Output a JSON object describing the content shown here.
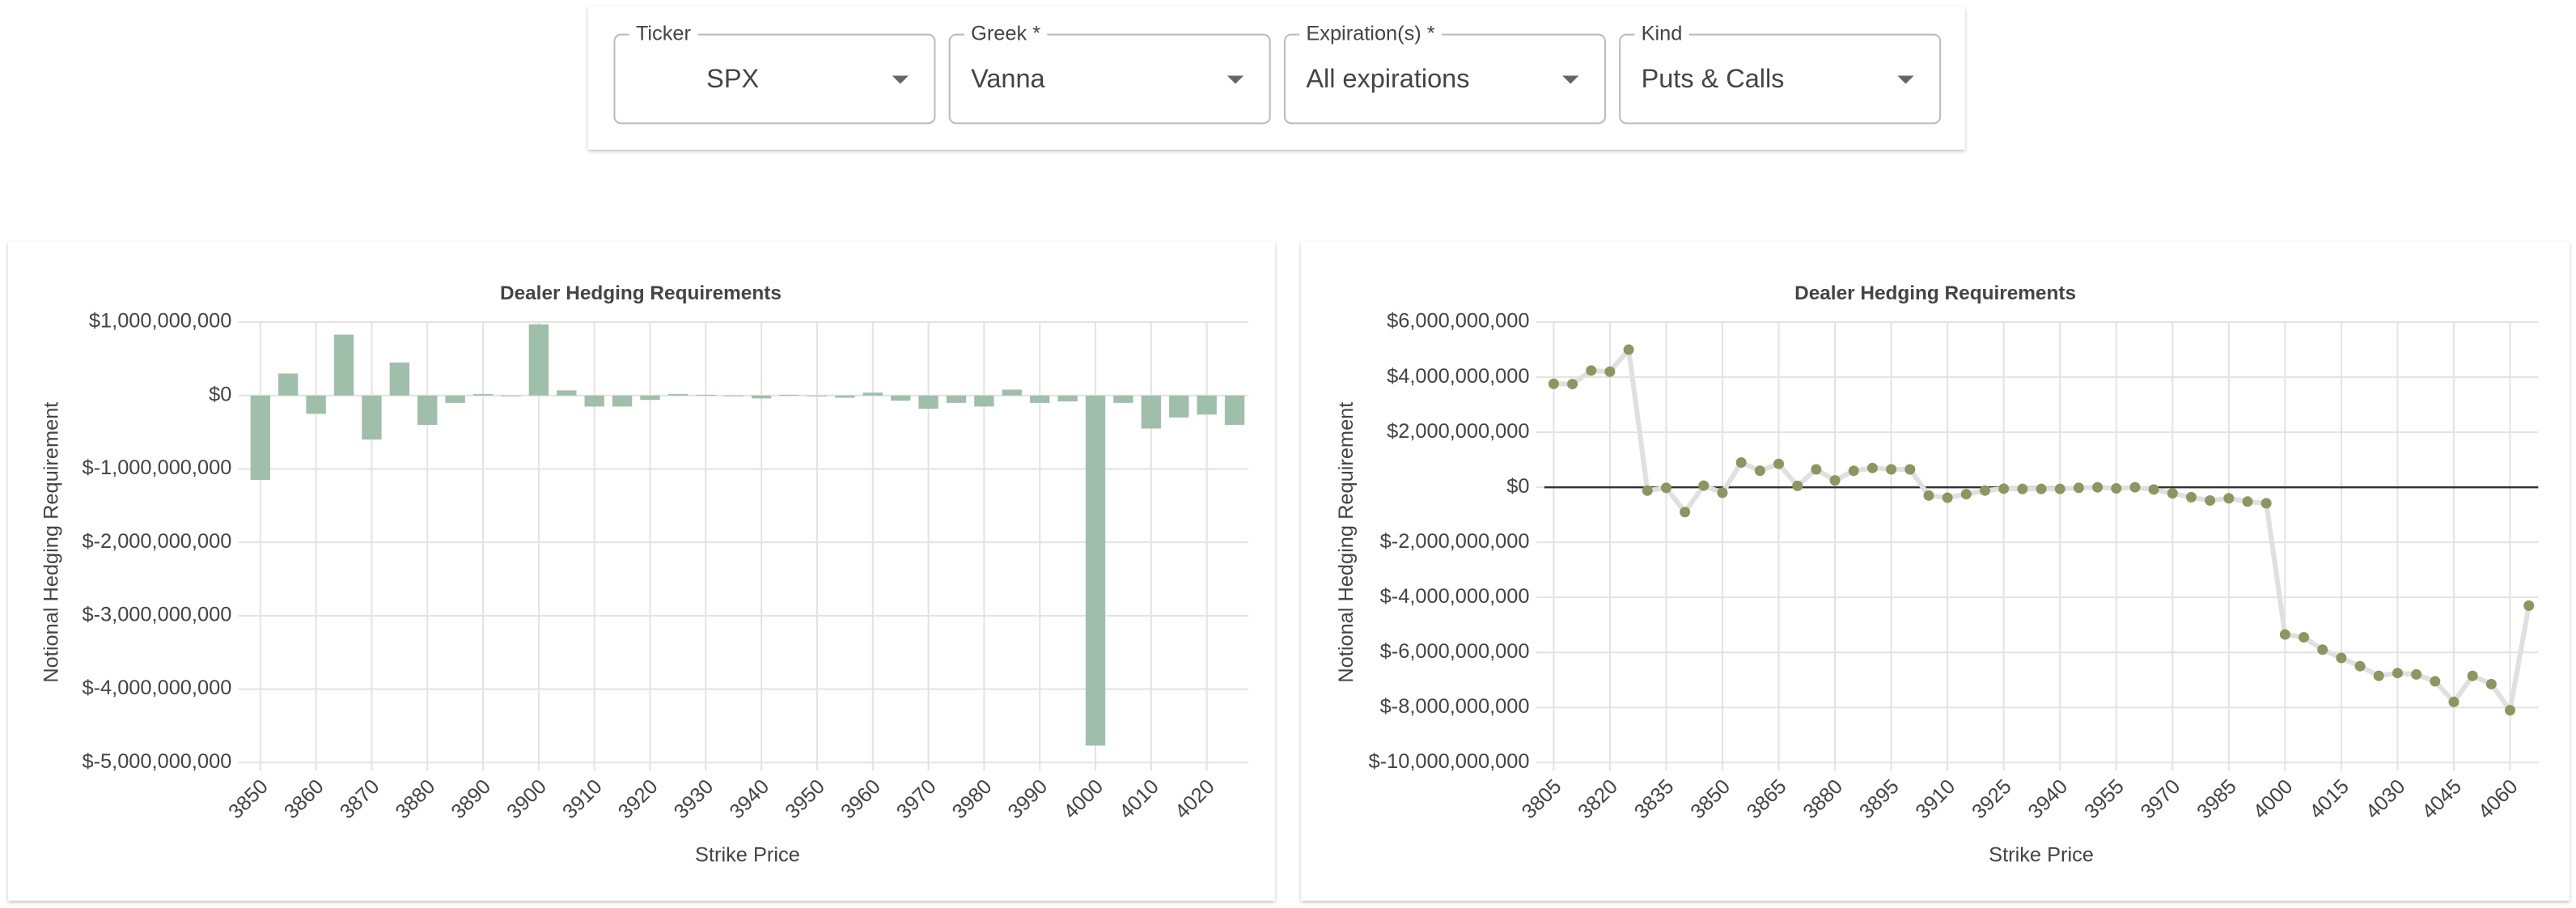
{
  "form": {
    "fields": [
      {
        "label": "Ticker",
        "value": "SPX"
      },
      {
        "label": "Greek *",
        "value": "Vanna"
      },
      {
        "label": "Expiration(s) *",
        "value": "All expirations"
      },
      {
        "label": "Kind",
        "value": "Puts & Calls"
      }
    ]
  },
  "chart_data": [
    {
      "type": "bar",
      "title": "Dealer Hedging Requirements",
      "x_label": "Strike Price",
      "y_label": "Notional Hedging Requirement",
      "color": "#a0bfaa",
      "grid": true,
      "categories": [
        "3850",
        null,
        "3860",
        null,
        "3870",
        null,
        "3880",
        null,
        "3890",
        null,
        "3900",
        null,
        "3910",
        null,
        "3920",
        null,
        "3930",
        null,
        "3940",
        null,
        "3950",
        null,
        "3960",
        null,
        "3970",
        null,
        "3980",
        null,
        "3990",
        null,
        "4000",
        null,
        "4010",
        null,
        "4020",
        null
      ],
      "values": [
        -1150000000,
        300000000,
        -250000000,
        830000000,
        -600000000,
        450000000,
        -400000000,
        -100000000,
        20000000,
        0,
        970000000,
        70000000,
        -150000000,
        -150000000,
        -60000000,
        20000000,
        10000000,
        0,
        -40000000,
        10000000,
        0,
        -30000000,
        40000000,
        -70000000,
        -180000000,
        -100000000,
        -150000000,
        80000000,
        -100000000,
        -80000000,
        -4770000000,
        -100000000,
        -450000000,
        -300000000,
        -260000000,
        -400000000
      ],
      "ylim": [
        -5000000000,
        1000000000
      ],
      "yticks": [
        {
          "value": 1000000000,
          "label": "$1,000,000,000"
        },
        {
          "value": 0,
          "label": "$0"
        },
        {
          "value": -1000000000,
          "label": "$-1,000,000,000"
        },
        {
          "value": -2000000000,
          "label": "$-2,000,000,000"
        },
        {
          "value": -3000000000,
          "label": "$-3,000,000,000"
        },
        {
          "value": -4000000000,
          "label": "$-4,000,000,000"
        },
        {
          "value": -5000000000,
          "label": "$-5,000,000,000"
        }
      ]
    },
    {
      "type": "line",
      "title": "Dealer Hedging Requirements",
      "x_label": "Strike Price",
      "y_label": "Notional Hedging Requirement",
      "color": "#8c9660",
      "line_color": "#e0e0e0",
      "grid": true,
      "zero_line": true,
      "categories": [
        "3805",
        null,
        null,
        "3820",
        null,
        null,
        "3835",
        null,
        null,
        "3850",
        null,
        null,
        "3865",
        null,
        null,
        "3880",
        null,
        null,
        "3895",
        null,
        null,
        "3910",
        null,
        null,
        "3925",
        null,
        null,
        "3940",
        null,
        null,
        "3955",
        null,
        null,
        "3970",
        null,
        null,
        "3985",
        null,
        null,
        "4000",
        null,
        null,
        "4015",
        null,
        null,
        "4030",
        null,
        null,
        "4045",
        null,
        null,
        "4060",
        null
      ],
      "values": [
        3760000000,
        3750000000,
        4240000000,
        4200000000,
        5000000000,
        -120000000,
        -20000000,
        -900000000,
        60000000,
        -200000000,
        900000000,
        600000000,
        850000000,
        50000000,
        650000000,
        250000000,
        600000000,
        700000000,
        650000000,
        650000000,
        -300000000,
        -380000000,
        -250000000,
        -120000000,
        -50000000,
        -60000000,
        -60000000,
        -60000000,
        -20000000,
        0,
        -40000000,
        0,
        -80000000,
        -220000000,
        -360000000,
        -480000000,
        -400000000,
        -520000000,
        -580000000,
        -5350000000,
        -5450000000,
        -5900000000,
        -6200000000,
        -6500000000,
        -6850000000,
        -6750000000,
        -6800000000,
        -7050000000,
        -7800000000,
        -6850000000,
        -7150000000,
        -8100000000,
        -4300000000
      ],
      "ylim": [
        -10000000000,
        6000000000
      ],
      "yticks": [
        {
          "value": 6000000000,
          "label": "$6,000,000,000"
        },
        {
          "value": 4000000000,
          "label": "$4,000,000,000"
        },
        {
          "value": 2000000000,
          "label": "$2,000,000,000"
        },
        {
          "value": 0,
          "label": "$0"
        },
        {
          "value": -2000000000,
          "label": "$-2,000,000,000"
        },
        {
          "value": -4000000000,
          "label": "$-4,000,000,000"
        },
        {
          "value": -6000000000,
          "label": "$-6,000,000,000"
        },
        {
          "value": -8000000000,
          "label": "$-8,000,000,000"
        },
        {
          "value": -10000000000,
          "label": "$-10,000,000,000"
        }
      ]
    }
  ]
}
